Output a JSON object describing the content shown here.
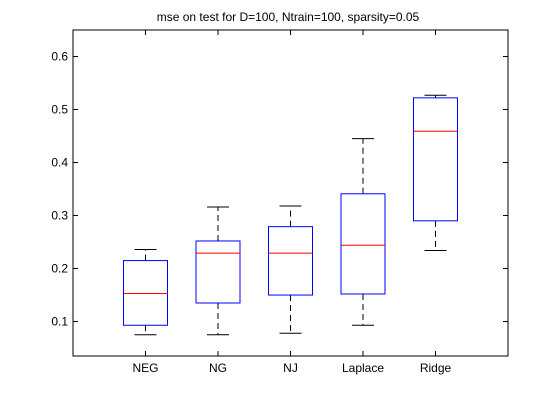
{
  "chart_data": {
    "type": "boxplot",
    "title": "mse on test for D=100, Ntrain=100, sparsity=0.05",
    "xlabel": "",
    "ylabel": "",
    "categories": [
      "NEG",
      "NG",
      "NJ",
      "Laplace",
      "Ridge"
    ],
    "ylim": [
      0.035,
      0.65
    ],
    "yticks": [
      0.1,
      0.2,
      0.3,
      0.4,
      0.5,
      0.6
    ],
    "ytick_labels": [
      "0.1",
      "0.2",
      "0.3",
      "0.4",
      "0.5",
      "0.6"
    ],
    "grid": false,
    "boxes": [
      {
        "label": "NEG",
        "whisker_low": 0.075,
        "q1": 0.093,
        "median": 0.153,
        "q3": 0.215,
        "whisker_high": 0.236
      },
      {
        "label": "NG",
        "whisker_low": 0.075,
        "q1": 0.135,
        "median": 0.229,
        "q3": 0.252,
        "whisker_high": 0.316
      },
      {
        "label": "NJ",
        "whisker_low": 0.078,
        "q1": 0.15,
        "median": 0.229,
        "q3": 0.279,
        "whisker_high": 0.318
      },
      {
        "label": "Laplace",
        "whisker_low": 0.093,
        "q1": 0.152,
        "median": 0.244,
        "q3": 0.341,
        "whisker_high": 0.445
      },
      {
        "label": "Ridge",
        "whisker_low": 0.234,
        "q1": 0.29,
        "median": 0.459,
        "q3": 0.522,
        "whisker_high": 0.527
      }
    ],
    "colors": {
      "box": "#0000ff",
      "median": "#ff0000",
      "whisker": "#000000",
      "axes": "#000000"
    }
  }
}
